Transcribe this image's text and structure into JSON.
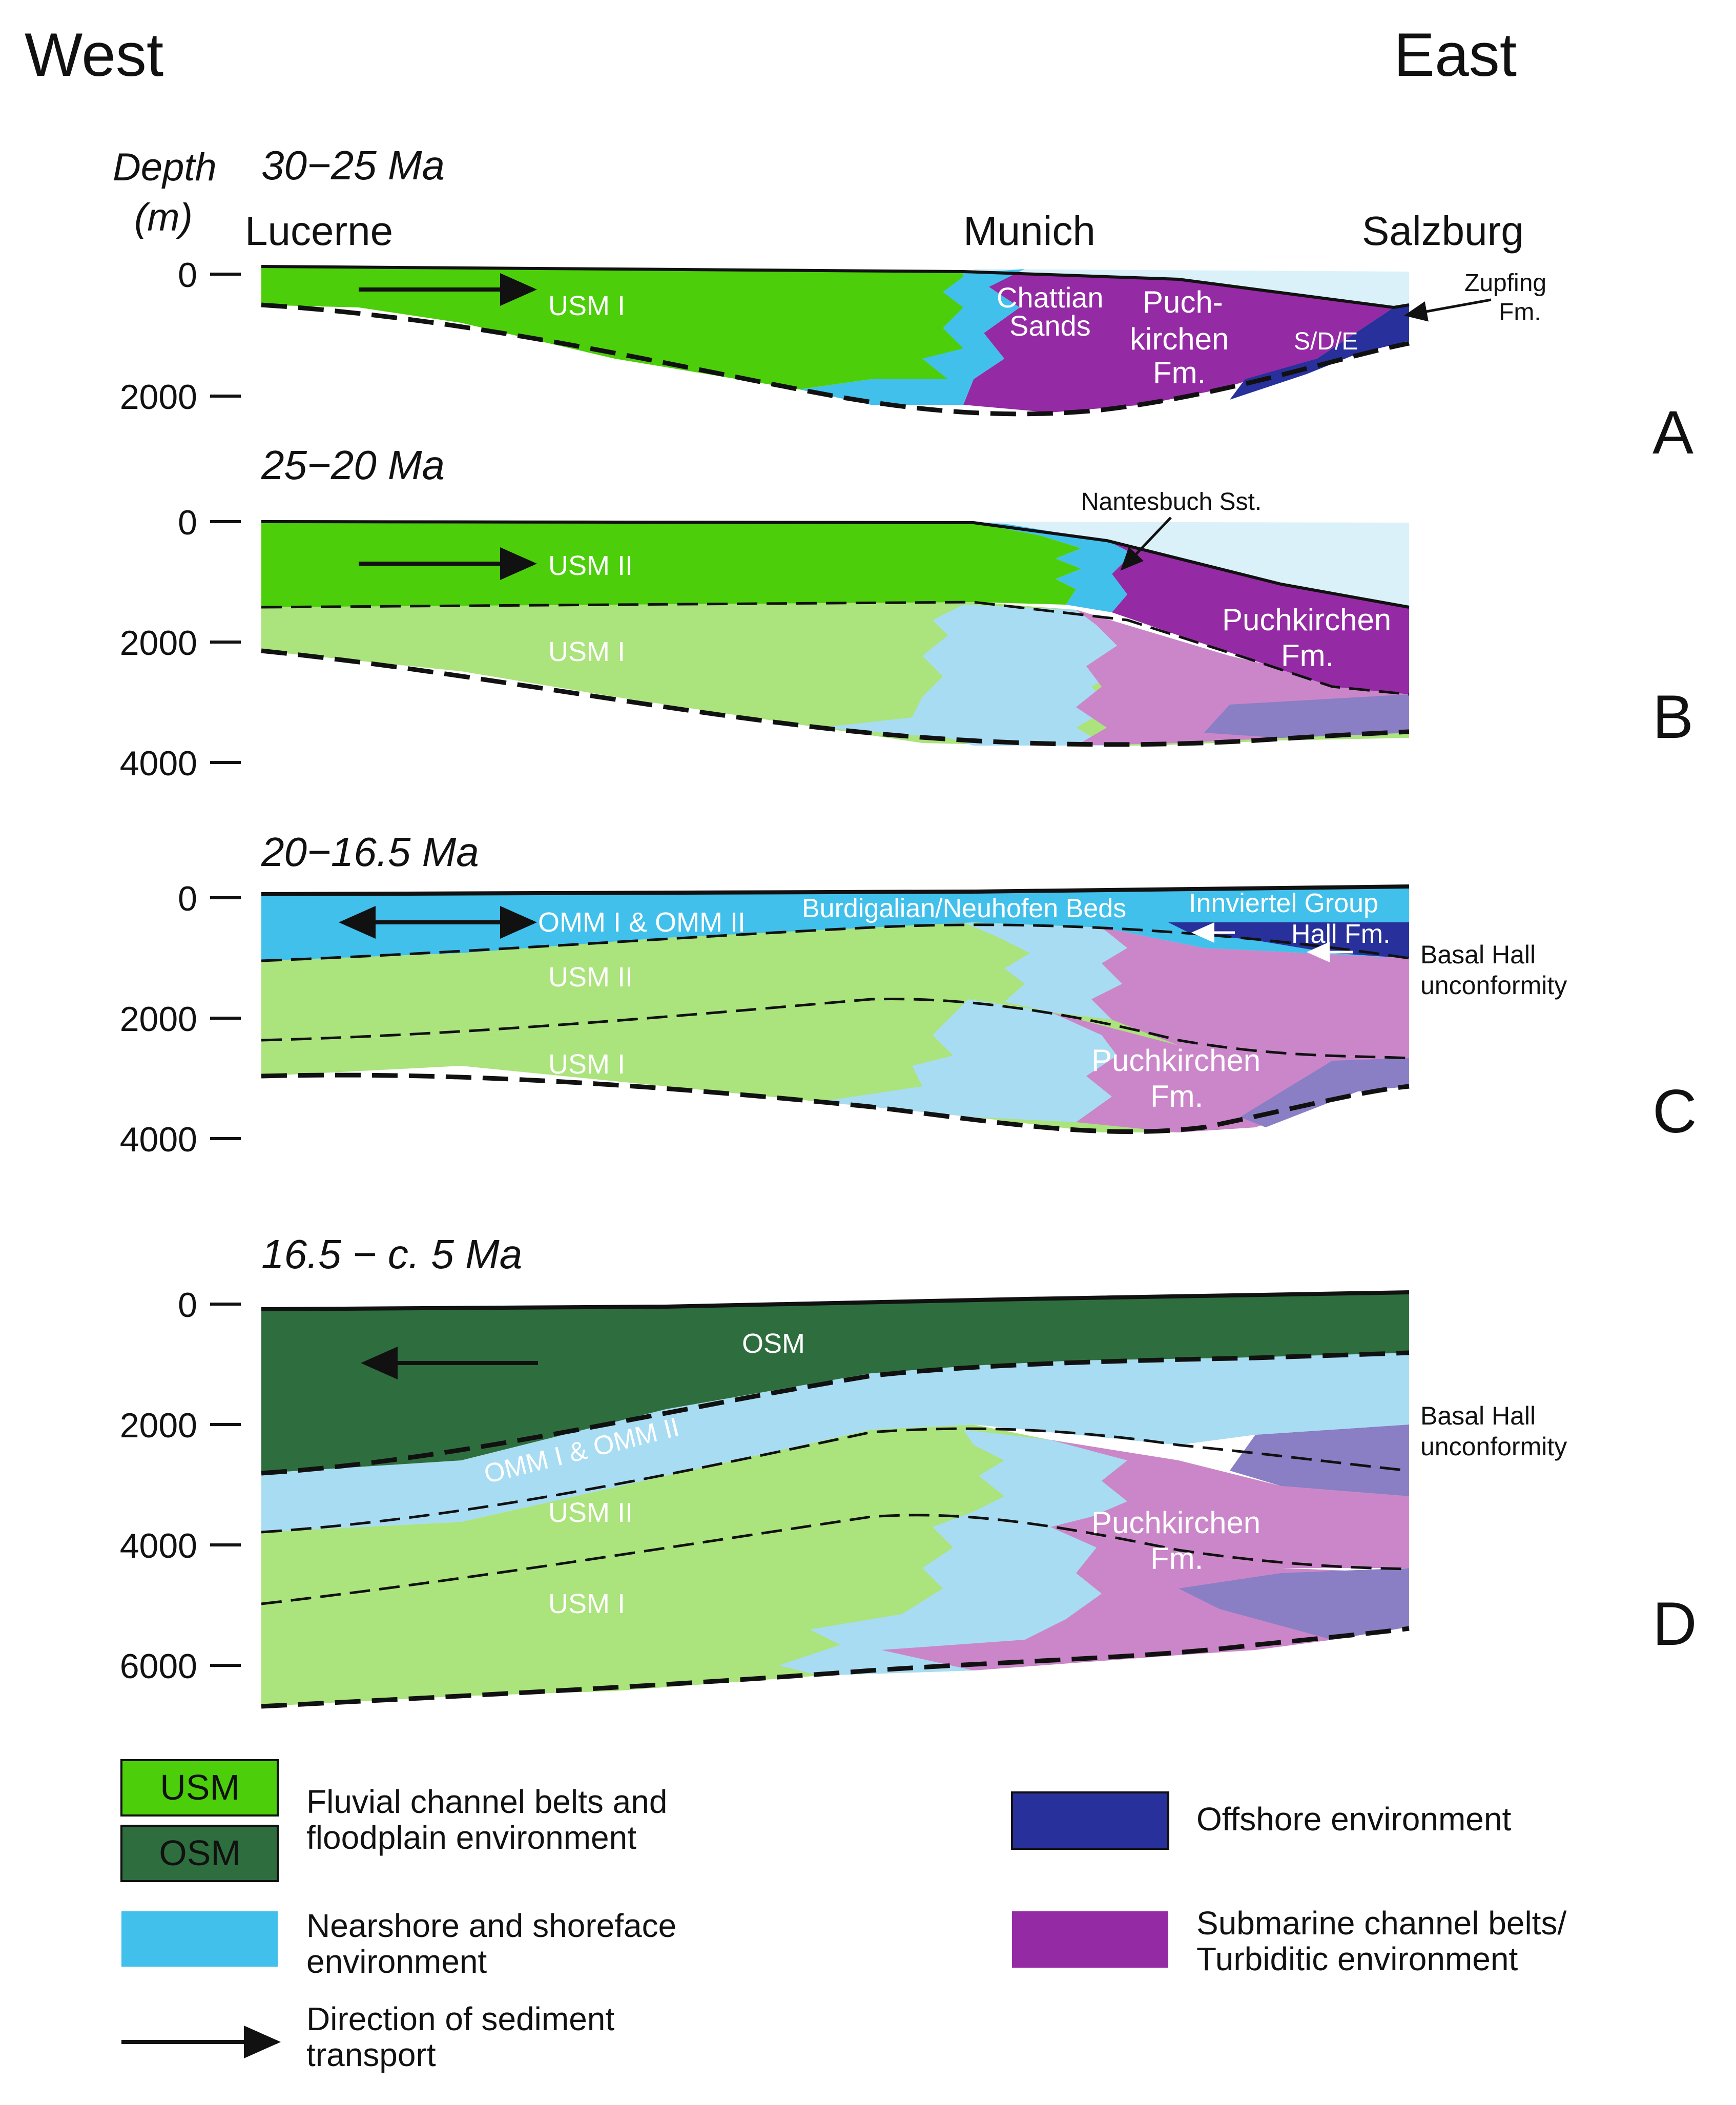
{
  "orientation": {
    "west": "West",
    "east": "East"
  },
  "depth_label": {
    "line1": "Depth",
    "line2": "(m)"
  },
  "colors": {
    "usm_active": "#4ccf0a",
    "usm_old": "#abe37c",
    "osm": "#2e6e3e",
    "nearshore_active": "#42c0ec",
    "nearshore_old": "#a8dcf2",
    "turbidite_active": "#952ba4",
    "turbidite_old": "#cb86ca",
    "offshore_active": "#27309b",
    "offshore_old": "#8a7ec4",
    "water": "#dbf1f9"
  },
  "panels": [
    {
      "letter": "A",
      "age": "30−25 Ma",
      "cities": [
        "Lucerne",
        "Munich",
        "Salzburg"
      ],
      "ticks": [
        "0",
        "2000"
      ],
      "labels": [
        "USM I",
        "Chattian",
        "Sands",
        "Puch-",
        "kirchen",
        "Fm.",
        "S/D/E",
        "Zupfing",
        "Fm."
      ]
    },
    {
      "letter": "B",
      "age": "25−20 Ma",
      "ticks": [
        "0",
        "2000",
        "4000"
      ],
      "labels": [
        "USM II",
        "USM I",
        "Nantesbuch Sst.",
        "Puchkirchen",
        "Fm."
      ]
    },
    {
      "letter": "C",
      "age": "20−16.5 Ma",
      "ticks": [
        "0",
        "2000",
        "4000"
      ],
      "labels": [
        "OMM I & OMM II",
        "Burdigalian/Neuhofen Beds",
        "Innviertel Group",
        "Hall Fm.",
        "USM II",
        "USM I",
        "Puchkirchen",
        "Fm.",
        "Basal Hall",
        "unconformity"
      ]
    },
    {
      "letter": "D",
      "age": "16.5 − c. 5 Ma",
      "ticks": [
        "0",
        "2000",
        "4000",
        "6000"
      ],
      "labels": [
        "OSM",
        "OMM I & OMM II",
        "USM II",
        "USM I",
        "Puchkirchen",
        "Fm.",
        "Basal Hall",
        "unconformity"
      ]
    }
  ],
  "legend": {
    "usm_box": "USM",
    "osm_box": "OSM",
    "fluvial": [
      "Fluvial channel belts and",
      "floodplain environment"
    ],
    "nearshore": [
      "Nearshore and shoreface",
      "environment"
    ],
    "direction": [
      "Direction of sediment",
      "transport"
    ],
    "offshore": "Offshore environment",
    "submarine": [
      "Submarine channel belts/",
      "Turbiditic environment"
    ]
  }
}
